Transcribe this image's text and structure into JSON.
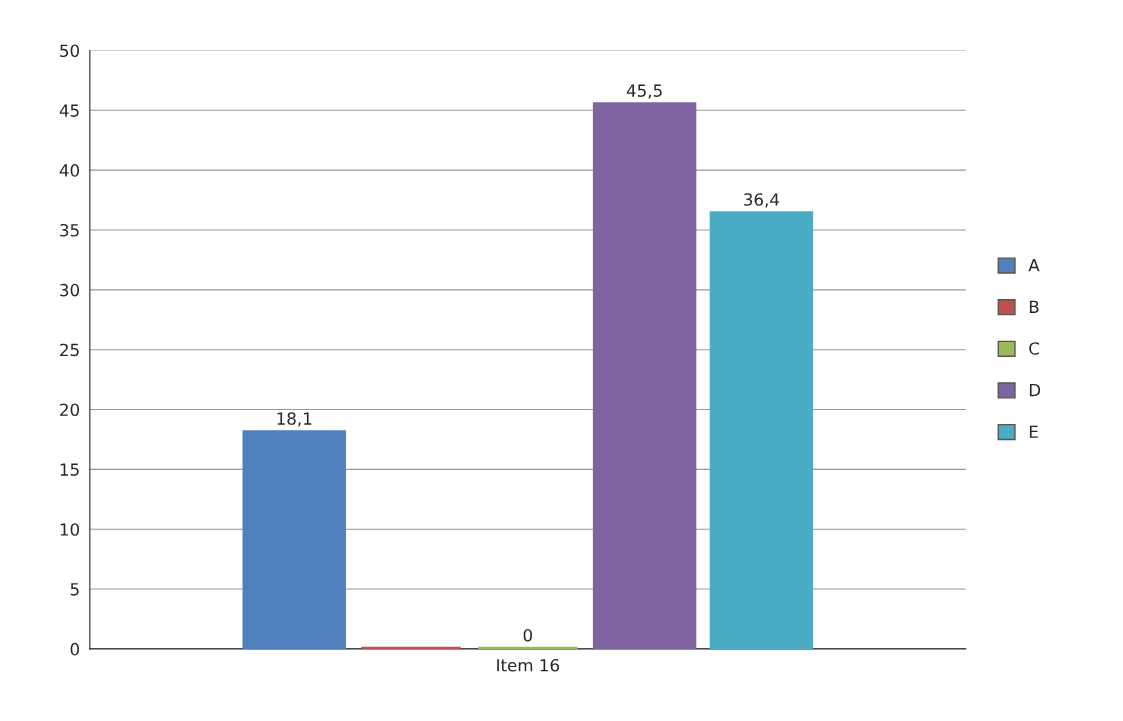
{
  "chart_data": {
    "type": "bar",
    "categories": [
      "Item 16"
    ],
    "series": [
      {
        "name": "A",
        "color": "#4f81bd",
        "values": [
          18.1
        ],
        "value_labels": [
          "18,1"
        ]
      },
      {
        "name": "B",
        "color": "#c0504d",
        "values": [
          0
        ],
        "value_labels": [
          null
        ]
      },
      {
        "name": "C",
        "color": "#9bbb59",
        "values": [
          0
        ],
        "value_labels": [
          "0"
        ]
      },
      {
        "name": "D",
        "color": "#8064a2",
        "values": [
          45.5
        ],
        "value_labels": [
          "45,5"
        ]
      },
      {
        "name": "E",
        "color": "#4bacc6",
        "values": [
          36.4
        ],
        "value_labels": [
          "36,4"
        ]
      }
    ],
    "ylim": [
      0,
      50
    ],
    "yticks": [
      0,
      5,
      10,
      15,
      20,
      25,
      30,
      35,
      40,
      45,
      50
    ],
    "grid": "y",
    "legend": "right"
  }
}
